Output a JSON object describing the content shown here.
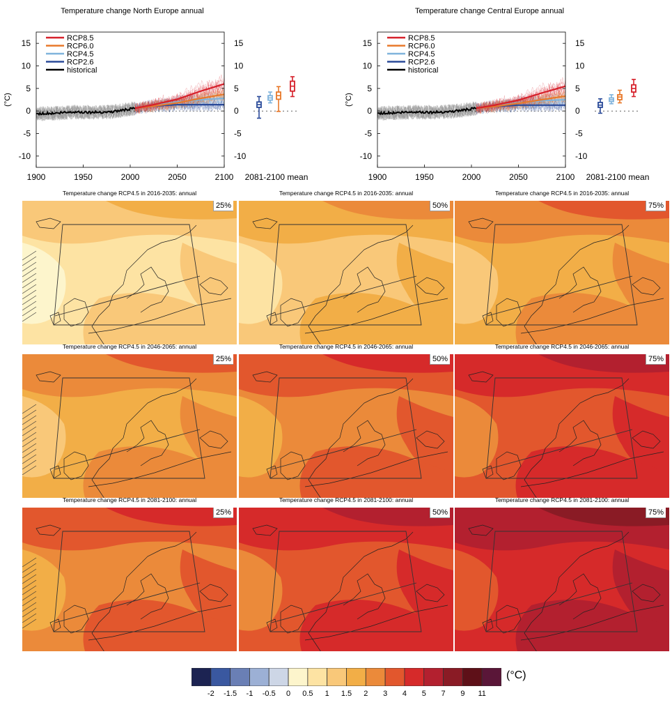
{
  "colors": {
    "rcp85": "#d6202a",
    "rcp60": "#e8782a",
    "rcp45": "#7fb3dc",
    "rcp26": "#2a4a99",
    "historical": "#000000",
    "historical_spread": "#9a9a9a"
  },
  "chart_data": [
    {
      "type": "line",
      "title": "Temperature change North Europe annual",
      "ylabel": "(°C)",
      "xlim": [
        1900,
        2100
      ],
      "ylim": [
        -12.5,
        17.5
      ],
      "x_ticks": [
        "1900",
        "1950",
        "2000",
        "2050",
        "2100"
      ],
      "y_ticks_left": [
        "15",
        "10",
        "5",
        "0",
        "-5",
        "-10"
      ],
      "y_ticks_right": [
        "15",
        "10",
        "5",
        "0",
        "-5",
        "-10"
      ],
      "box_label": "2081-2100 mean",
      "series": [
        {
          "name": "RCP8.5",
          "color": "#d6202a",
          "x": [
            2005,
            2025,
            2050,
            2075,
            2100
          ],
          "values": [
            0.6,
            1.4,
            2.6,
            4.4,
            6.0
          ]
        },
        {
          "name": "RCP6.0",
          "color": "#e8782a",
          "x": [
            2005,
            2025,
            2050,
            2075,
            2100
          ],
          "values": [
            0.6,
            1.1,
            1.8,
            2.8,
            3.7
          ]
        },
        {
          "name": "RCP4.5",
          "color": "#7fb3dc",
          "x": [
            2005,
            2025,
            2050,
            2075,
            2100
          ],
          "values": [
            0.6,
            1.2,
            2.0,
            2.5,
            2.8
          ]
        },
        {
          "name": "RCP2.6",
          "color": "#2a4a99",
          "x": [
            2005,
            2025,
            2050,
            2075,
            2100
          ],
          "values": [
            0.6,
            1.1,
            1.4,
            1.4,
            1.4
          ]
        },
        {
          "name": "historical",
          "color": "#000000",
          "x": [
            1900,
            1920,
            1940,
            1960,
            1980,
            2005
          ],
          "values": [
            -0.6,
            -0.5,
            -0.2,
            -0.3,
            -0.2,
            0.6
          ]
        }
      ],
      "boxes": [
        {
          "name": "RCP2.6",
          "color": "#2a4a99",
          "min": -1.6,
          "q1": 0.8,
          "median": 1.4,
          "q3": 2.0,
          "max": 3.2
        },
        {
          "name": "RCP4.5",
          "color": "#7fb3dc",
          "min": 1.8,
          "q1": 2.4,
          "median": 2.9,
          "q3": 3.4,
          "max": 4.2
        },
        {
          "name": "RCP6.0",
          "color": "#e8782a",
          "min": -0.1,
          "q1": 2.6,
          "median": 3.4,
          "q3": 4.2,
          "max": 5.4
        },
        {
          "name": "RCP8.5",
          "color": "#d6202a",
          "min": 3.2,
          "q1": 4.4,
          "median": 5.5,
          "q3": 6.6,
          "max": 7.6
        }
      ]
    },
    {
      "type": "line",
      "title": "Temperature change Central Europe annual",
      "ylabel": "(°C)",
      "xlim": [
        1900,
        2100
      ],
      "ylim": [
        -12.5,
        17.5
      ],
      "x_ticks": [
        "1900",
        "1950",
        "2000",
        "2050",
        "2100"
      ],
      "y_ticks_left": [
        "15",
        "10",
        "5",
        "0",
        "-5",
        "-10"
      ],
      "y_ticks_right": [
        "15",
        "10",
        "5",
        "0",
        "-5",
        "-10"
      ],
      "box_label": "2081-2100 mean",
      "series": [
        {
          "name": "RCP8.5",
          "color": "#d6202a",
          "x": [
            2005,
            2025,
            2050,
            2075,
            2100
          ],
          "values": [
            0.6,
            1.3,
            2.4,
            4.0,
            5.5
          ]
        },
        {
          "name": "RCP6.0",
          "color": "#e8782a",
          "x": [
            2005,
            2025,
            2050,
            2075,
            2100
          ],
          "values": [
            0.6,
            1.0,
            1.7,
            2.5,
            3.3
          ]
        },
        {
          "name": "RCP4.5",
          "color": "#7fb3dc",
          "x": [
            2005,
            2025,
            2050,
            2075,
            2100
          ],
          "values": [
            0.6,
            1.1,
            1.8,
            2.3,
            2.5
          ]
        },
        {
          "name": "RCP2.6",
          "color": "#2a4a99",
          "x": [
            2005,
            2025,
            2050,
            2075,
            2100
          ],
          "values": [
            0.6,
            1.0,
            1.3,
            1.3,
            1.3
          ]
        },
        {
          "name": "historical",
          "color": "#000000",
          "x": [
            1900,
            1920,
            1940,
            1960,
            1980,
            2005
          ],
          "values": [
            -0.5,
            -0.4,
            -0.2,
            -0.3,
            -0.1,
            0.6
          ]
        }
      ],
      "boxes": [
        {
          "name": "RCP2.6",
          "color": "#2a4a99",
          "min": -0.5,
          "q1": 0.8,
          "median": 1.3,
          "q3": 1.9,
          "max": 2.7
        },
        {
          "name": "RCP4.5",
          "color": "#7fb3dc",
          "min": 1.6,
          "q1": 2.1,
          "median": 2.5,
          "q3": 2.9,
          "max": 3.6
        },
        {
          "name": "RCP6.0",
          "color": "#e8782a",
          "min": 1.8,
          "q1": 2.5,
          "median": 3.1,
          "q3": 3.6,
          "max": 4.6
        },
        {
          "name": "RCP8.5",
          "color": "#d6202a",
          "min": 3.2,
          "q1": 4.2,
          "median": 5.0,
          "q3": 5.8,
          "max": 7.0
        }
      ]
    },
    {
      "type": "heatmap",
      "maps": [
        {
          "title": "Temperature change RCP4.5 in 2016-2035: annual",
          "percentile": "25%",
          "level": 0
        },
        {
          "title": "Temperature change RCP4.5 in 2016-2035: annual",
          "percentile": "50%",
          "level": 1
        },
        {
          "title": "Temperature change RCP4.5 in 2016-2035: annual",
          "percentile": "75%",
          "level": 2
        },
        {
          "title": "Temperature change RCP4.5 in 2046-2065: annual",
          "percentile": "25%",
          "level": 2
        },
        {
          "title": "Temperature change RCP4.5 in 2046-2065: annual",
          "percentile": "50%",
          "level": 3
        },
        {
          "title": "Temperature change RCP4.5 in 2046-2065: annual",
          "percentile": "75%",
          "level": 4
        },
        {
          "title": "Temperature change RCP4.5 in 2081-2100: annual",
          "percentile": "25%",
          "level": 3
        },
        {
          "title": "Temperature change RCP4.5 in 2081-2100: annual",
          "percentile": "50%",
          "level": 4
        },
        {
          "title": "Temperature change RCP4.5 in 2081-2100: annual",
          "percentile": "75%",
          "level": 5
        }
      ],
      "colorbar": {
        "unit": "(°C)",
        "colors": [
          "#1c2352",
          "#3a58a0",
          "#6a7fb5",
          "#9cb0d5",
          "#cdd6e6",
          "#fdf5cc",
          "#fde3a3",
          "#f9c879",
          "#f2ae47",
          "#eb8a3a",
          "#e2572d",
          "#d62a2a",
          "#b3202f",
          "#8a1b25",
          "#5e1018",
          "#5a1638"
        ],
        "labels": [
          "-2",
          "-1.5",
          "-1",
          "-0.5",
          "0",
          "0.5",
          "1",
          "1.5",
          "2",
          "3",
          "4",
          "5",
          "7",
          "9",
          "11"
        ]
      }
    }
  ]
}
